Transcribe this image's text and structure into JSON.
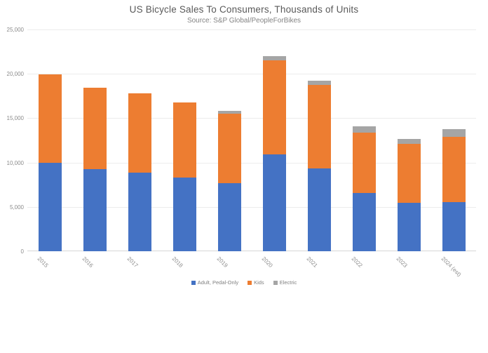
{
  "chart_data": {
    "type": "bar",
    "stacked": true,
    "title": "US Bicycle Sales To Consumers, Thousands of Units",
    "subtitle": "Source: S&P Global/PeopleForBikes",
    "categories": [
      "2015",
      "2016",
      "2017",
      "2018",
      "2019",
      "2020",
      "2021",
      "2022",
      "2023",
      "2024 (est)"
    ],
    "series": [
      {
        "name": "Adult, Pedal-Only",
        "key": "adult-pedal-only",
        "color": "#4472C4",
        "values": [
          10000,
          9250,
          8850,
          8300,
          7700,
          10900,
          9300,
          6600,
          5500,
          5550
        ]
      },
      {
        "name": "Kids",
        "key": "kids",
        "color": "#ED7D31",
        "values": [
          9950,
          9150,
          8950,
          8450,
          7800,
          10600,
          9450,
          6800,
          6600,
          7350
        ]
      },
      {
        "name": "Electric",
        "key": "electric",
        "color": "#A5A5A5",
        "values": [
          0,
          0,
          0,
          0,
          300,
          500,
          500,
          700,
          600,
          850
        ]
      }
    ],
    "ylim": [
      0,
      25000
    ],
    "y_ticks": [
      {
        "value": 0,
        "label": "0"
      },
      {
        "value": 5000,
        "label": "5,000"
      },
      {
        "value": 10000,
        "label": "10,000"
      },
      {
        "value": 15000,
        "label": "15,000"
      },
      {
        "value": 20000,
        "label": "20,000"
      },
      {
        "value": 25000,
        "label": "25,000"
      }
    ],
    "grid": true,
    "legend_position": "bottom",
    "background": "#ffffff",
    "text_colors": {
      "title": "#595959",
      "subtitle": "#848484",
      "axis": "#8c8c8c",
      "legend": "#808080"
    }
  }
}
